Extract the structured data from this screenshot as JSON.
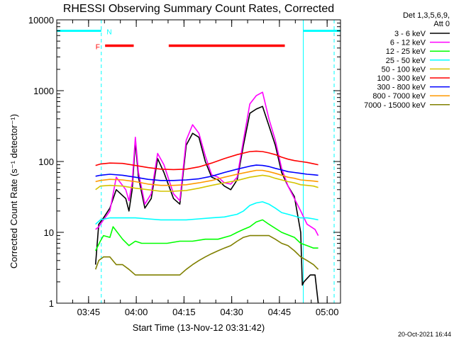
{
  "chart_data": {
    "type": "line",
    "title": "RHESSI Observing Summary Count Rates, Corrected",
    "xlabel": "Start Time (13-Nov-12 03:31:42)",
    "ylabel": "Corrected Count Rate (s⁻¹ detector⁻¹)",
    "footer": "20-Oct-2021 16:44",
    "ylog": true,
    "ylim": [
      1,
      10000
    ],
    "xlim_minutes": [
      3.3,
      92.5
    ],
    "yticks": [
      {
        "v": 1,
        "label": "1"
      },
      {
        "v": 10,
        "label": "10"
      },
      {
        "v": 100,
        "label": "100"
      },
      {
        "v": 1000,
        "label": "1000"
      },
      {
        "v": 10000,
        "label": "10000"
      }
    ],
    "xticks": [
      {
        "t": 13.3,
        "label": "03:45"
      },
      {
        "t": 28.3,
        "label": "04:00"
      },
      {
        "t": 43.3,
        "label": "04:15"
      },
      {
        "t": 58.3,
        "label": "04:30"
      },
      {
        "t": 73.3,
        "label": "04:45"
      },
      {
        "t": 88.3,
        "label": "05:00"
      }
    ],
    "legend_header": [
      "Det 1,3,5,6,9,",
      "Att 0"
    ],
    "legend_placement": "right",
    "flags": {
      "labels": [
        {
          "text": "F",
          "t": 16.2,
          "color": "#ff0000"
        },
        {
          "text": "N",
          "t": 19.8,
          "color": "#00ffff"
        }
      ],
      "night_bars": [
        [
          3.3,
          17.3
        ],
        [
          80.8,
          92.5
        ]
      ],
      "flare_bars": [
        [
          18.5,
          27.5
        ],
        [
          38.5,
          75.0
        ]
      ],
      "dashed_lines": [
        17.3,
        90.5
      ],
      "solid_lines": [
        3.3,
        80.8
      ]
    },
    "series": [
      {
        "name": "3 - 6 keV",
        "color": "#000000",
        "x": [
          15.5,
          16.5,
          18,
          20,
          22,
          25,
          26,
          27,
          28,
          29,
          31,
          33,
          35,
          37,
          40,
          42,
          44,
          46,
          48,
          50,
          52,
          54,
          56,
          58,
          60,
          62,
          64,
          66,
          68,
          70,
          72,
          74,
          76,
          78,
          80,
          80.5,
          81,
          83,
          84.5,
          85.5
        ],
        "y": [
          3.5,
          13,
          16,
          22,
          40,
          30,
          20,
          40,
          190,
          60,
          22,
          30,
          110,
          70,
          30,
          25,
          170,
          250,
          220,
          100,
          60,
          55,
          45,
          40,
          55,
          170,
          480,
          550,
          600,
          320,
          170,
          70,
          45,
          32,
          10,
          1.8,
          2,
          2.5,
          2.5,
          1
        ]
      },
      {
        "name": "6 - 12 keV",
        "color": "#ff00ff",
        "x": [
          15.5,
          16.5,
          18,
          20,
          22,
          25,
          26,
          27,
          28,
          29,
          31,
          33,
          35,
          37,
          40,
          42,
          44,
          46,
          48,
          50,
          52,
          54,
          56,
          58,
          60,
          62,
          64,
          66,
          68,
          70,
          72,
          74,
          76,
          78,
          80,
          82,
          84.5,
          85.5
        ],
        "y": [
          11,
          12,
          15,
          20,
          60,
          40,
          28,
          50,
          220,
          70,
          25,
          35,
          130,
          90,
          35,
          28,
          200,
          330,
          250,
          120,
          65,
          60,
          50,
          48,
          60,
          200,
          650,
          850,
          950,
          400,
          200,
          80,
          45,
          30,
          20,
          13,
          11,
          9
        ]
      },
      {
        "name": "12 - 25 keV",
        "color": "#00ff00",
        "x": [
          15.5,
          17,
          18,
          20,
          21,
          24,
          26,
          28,
          30,
          34,
          38,
          42,
          46,
          50,
          54,
          58,
          60,
          62,
          64,
          66,
          68,
          70,
          74,
          78,
          80,
          82,
          84,
          85.5
        ],
        "y": [
          5.5,
          7.5,
          9,
          8.5,
          12,
          8,
          6.5,
          7.5,
          7,
          7,
          7,
          7.5,
          7.5,
          8,
          8,
          9,
          10,
          11,
          12,
          14,
          15,
          13,
          10,
          8.5,
          7,
          6.5,
          6,
          6
        ]
      },
      {
        "name": "25 - 50 keV",
        "color": "#00ffff",
        "x": [
          15.5,
          17,
          20,
          24,
          28,
          32,
          36,
          40,
          44,
          48,
          52,
          56,
          60,
          62,
          64,
          66,
          68,
          70,
          72,
          74,
          76,
          78,
          80,
          82,
          84,
          85.5
        ],
        "y": [
          13,
          15,
          16,
          16,
          16,
          15.5,
          15,
          15,
          15,
          15.5,
          16,
          16.5,
          18,
          20,
          24,
          26,
          27,
          25,
          22,
          19,
          18,
          17,
          16,
          16,
          15.5,
          15
        ]
      },
      {
        "name": "50 - 100 keV",
        "color": "#d4c400",
        "x": [
          15.5,
          17,
          20,
          24,
          28,
          32,
          36,
          40,
          44,
          48,
          52,
          56,
          60,
          64,
          66,
          68,
          70,
          72,
          74,
          76,
          78,
          80,
          82,
          84,
          85.5
        ],
        "y": [
          40,
          45,
          46,
          45,
          42,
          40,
          38,
          38,
          39,
          42,
          46,
          50,
          54,
          60,
          62,
          64,
          62,
          58,
          55,
          52,
          50,
          47,
          46,
          45,
          43
        ]
      },
      {
        "name": "100 - 300 keV",
        "color": "#ff0000",
        "x": [
          15.5,
          17,
          20,
          24,
          28,
          32,
          36,
          40,
          44,
          48,
          52,
          56,
          60,
          64,
          66,
          68,
          70,
          72,
          74,
          76,
          78,
          80,
          82,
          84,
          85.5
        ],
        "y": [
          88,
          92,
          95,
          94,
          88,
          82,
          78,
          77,
          78,
          84,
          95,
          110,
          125,
          138,
          140,
          138,
          132,
          125,
          115,
          108,
          103,
          100,
          97,
          93,
          90
        ]
      },
      {
        "name": "300 - 800 keV",
        "color": "#0000ff",
        "x": [
          15.5,
          17,
          20,
          24,
          28,
          32,
          36,
          40,
          44,
          48,
          52,
          56,
          60,
          64,
          66,
          68,
          70,
          72,
          74,
          76,
          78,
          80,
          82,
          84,
          85.5
        ],
        "y": [
          62,
          64,
          66,
          64,
          60,
          56,
          54,
          54,
          55,
          57,
          62,
          70,
          78,
          86,
          89,
          88,
          85,
          80,
          76,
          72,
          70,
          68,
          66,
          65,
          64
        ]
      },
      {
        "name": "800 - 7000 keV",
        "color": "#ff9900",
        "x": [
          15.5,
          17,
          20,
          24,
          28,
          32,
          36,
          40,
          44,
          48,
          52,
          56,
          60,
          64,
          66,
          68,
          70,
          72,
          74,
          76,
          78,
          80,
          82,
          84,
          85.5
        ],
        "y": [
          52,
          54,
          56,
          55,
          52,
          48,
          46,
          46,
          47,
          50,
          54,
          60,
          66,
          72,
          75,
          75,
          72,
          68,
          64,
          60,
          58,
          55,
          54,
          53,
          52
        ]
      },
      {
        "name": "7000 - 15000 keV",
        "color": "#808000",
        "x": [
          15.5,
          16.5,
          18,
          20,
          22,
          24,
          26,
          28,
          30,
          32,
          34,
          36,
          38,
          40,
          42,
          44,
          46,
          48,
          50,
          52,
          54,
          56,
          58,
          60,
          62,
          64,
          66,
          68,
          70,
          72,
          74,
          76,
          78,
          80,
          82,
          84,
          85.5
        ],
        "y": [
          3,
          4,
          4.5,
          4.5,
          3.5,
          3.5,
          3,
          2.5,
          2.5,
          2.5,
          2.5,
          2.5,
          2.5,
          2.5,
          2.5,
          3,
          3.5,
          4,
          4.5,
          5,
          5.5,
          6,
          6.5,
          7.5,
          8.5,
          9,
          9,
          9,
          9,
          8,
          7,
          6.5,
          5.5,
          4.5,
          4,
          3.5,
          3
        ]
      }
    ]
  }
}
